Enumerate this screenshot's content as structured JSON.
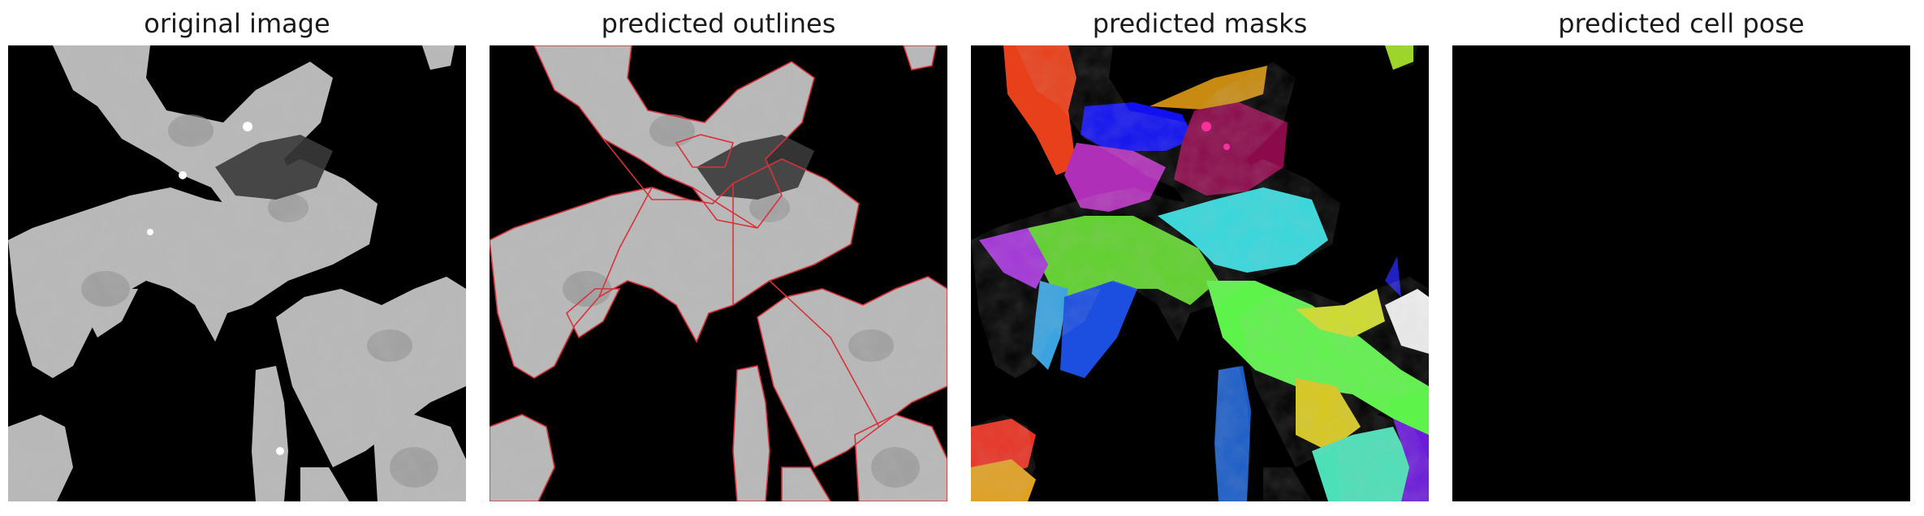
{
  "figure": {
    "panels": [
      {
        "title": "original image"
      },
      {
        "title": "predicted outlines"
      },
      {
        "title": "predicted masks"
      },
      {
        "title": "predicted cell pose"
      }
    ]
  }
}
